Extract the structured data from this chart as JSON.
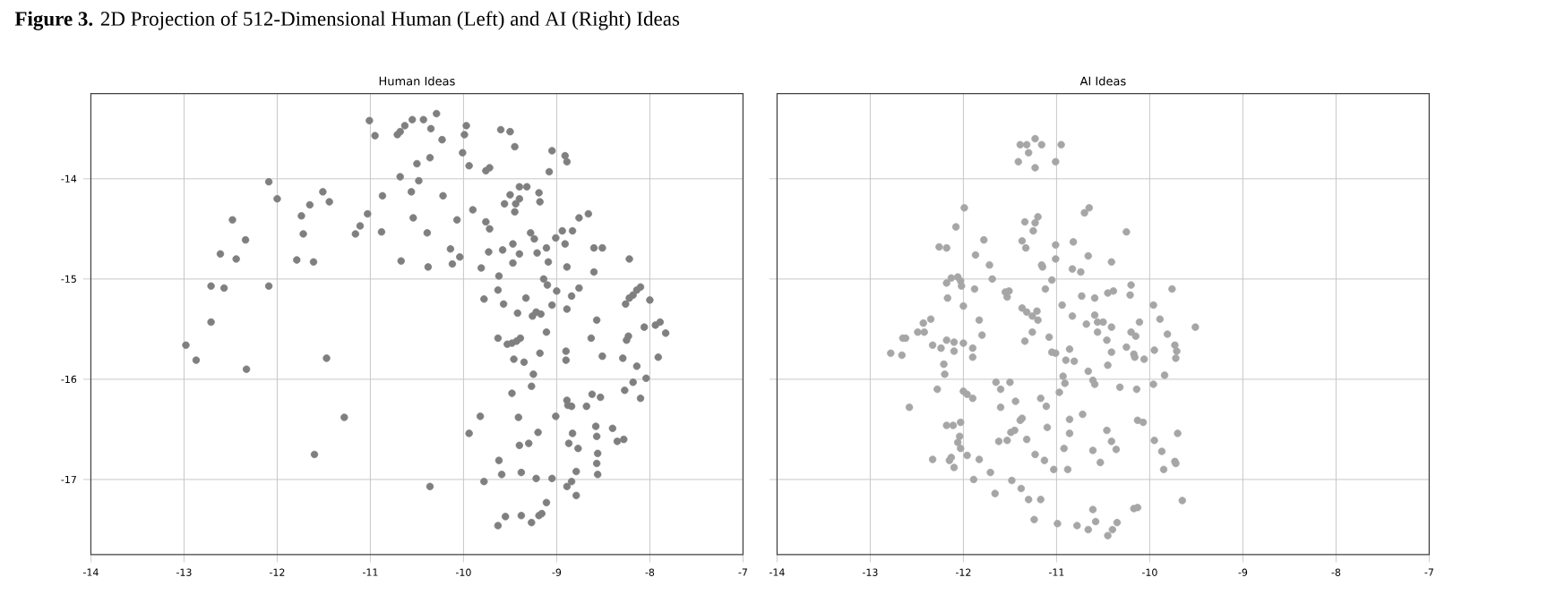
{
  "chart_data": [
    {
      "type": "scatter",
      "title": "Human Ideas",
      "annotations": [
        "**Figure 3.** 2D Projection of 512-Dimensional Human (Left) and AI (Right) Ideas"
      ],
      "color": "#7f7f7f",
      "marker": "circle",
      "grid": true,
      "xlim": [
        -14,
        -7
      ],
      "ylim": [
        -17.75,
        -13.15
      ],
      "xticks": [
        -14,
        -13,
        -12,
        -11,
        -10,
        -9,
        -8,
        -7
      ],
      "yticks": [
        -14,
        -15,
        -16,
        -17
      ],
      "x": [
        -12.09,
        -12.0,
        -12.48,
        -12.61,
        -12.34,
        -12.44,
        -12.71,
        -12.57,
        -12.09,
        -12.71,
        -12.98,
        -12.87,
        -12.33,
        -11.74,
        -11.72,
        -11.65,
        -11.51,
        -11.44,
        -11.79,
        -11.61,
        -11.47,
        -11.28,
        -11.6,
        -11.16,
        -11.01,
        -10.95,
        -10.71,
        -10.68,
        -10.63,
        -10.55,
        -10.43,
        -10.35,
        -10.29,
        -10.23,
        -9.97,
        -9.99,
        -10.01,
        -9.94,
        -10.5,
        -10.36,
        -10.68,
        -10.48,
        -10.87,
        -10.56,
        -11.03,
        -11.11,
        -10.88,
        -10.54,
        -10.39,
        -10.22,
        -10.07,
        -10.67,
        -10.38,
        -10.14,
        -10.12,
        -10.04,
        -9.9,
        -9.76,
        -9.72,
        -9.6,
        -9.5,
        -9.45,
        -9.76,
        -9.72,
        -9.56,
        -9.5,
        -9.44,
        -9.4,
        -9.45,
        -9.4,
        -9.32,
        -9.19,
        -9.18,
        -9.05,
        -9.08,
        -8.91,
        -8.89,
        -9.73,
        -9.58,
        -9.47,
        -9.28,
        -9.24,
        -9.11,
        -9.01,
        -8.94,
        -8.83,
        -8.91,
        -8.76,
        -8.66,
        -8.6,
        -8.51,
        -9.47,
        -9.4,
        -9.21,
        -9.09,
        -9.81,
        -9.62,
        -8.89,
        -8.6,
        -8.22,
        -9.14,
        -9.1,
        -9.0,
        -8.76,
        -8.84,
        -8.89,
        -9.05,
        -9.63,
        -9.78,
        -9.57,
        -9.33,
        -9.42,
        -9.26,
        -9.22,
        -9.17,
        -9.11,
        -9.63,
        -9.53,
        -9.48,
        -9.43,
        -9.39,
        -9.46,
        -9.35,
        -9.18,
        -9.25,
        -9.27,
        -8.9,
        -8.9,
        -8.63,
        -8.57,
        -8.51,
        -8.26,
        -8.22,
        -8.18,
        -8.14,
        -8.1,
        -8.0,
        -8.06,
        -7.94,
        -7.89,
        -7.83,
        -8.25,
        -8.23,
        -8.29,
        -8.14,
        -7.91,
        -8.04,
        -8.18,
        -8.27,
        -8.1,
        -9.48,
        -8.62,
        -8.53,
        -8.68,
        -8.89,
        -8.88,
        -8.84,
        -9.01,
        -9.82,
        -9.41,
        -9.94,
        -9.2,
        -9.3,
        -9.4,
        -8.83,
        -8.87,
        -8.77,
        -8.58,
        -8.57,
        -8.4,
        -8.35,
        -8.28,
        -8.56,
        -8.57,
        -8.56,
        -9.62,
        -9.59,
        -9.78,
        -9.38,
        -9.22,
        -9.05,
        -8.79,
        -8.89,
        -8.84,
        -8.79,
        -9.11,
        -10.36,
        -9.63,
        -9.55,
        -9.38,
        -9.27,
        -9.19,
        -9.16
      ],
      "values": [
        -14.03,
        -14.2,
        -14.41,
        -14.75,
        -14.61,
        -14.8,
        -15.07,
        -15.09,
        -15.07,
        -15.43,
        -15.66,
        -15.81,
        -15.9,
        -14.37,
        -14.55,
        -14.26,
        -14.13,
        -14.23,
        -14.81,
        -14.83,
        -15.79,
        -16.38,
        -16.75,
        -14.55,
        -13.42,
        -13.57,
        -13.56,
        -13.53,
        -13.47,
        -13.41,
        -13.41,
        -13.5,
        -13.35,
        -13.61,
        -13.47,
        -13.56,
        -13.74,
        -13.87,
        -13.85,
        -13.79,
        -13.98,
        -14.02,
        -14.17,
        -14.13,
        -14.35,
        -14.47,
        -14.53,
        -14.39,
        -14.54,
        -14.17,
        -14.41,
        -14.82,
        -14.88,
        -14.7,
        -14.85,
        -14.78,
        -14.31,
        -13.92,
        -13.89,
        -13.51,
        -13.53,
        -13.68,
        -14.43,
        -14.5,
        -14.25,
        -14.16,
        -14.25,
        -14.2,
        -14.33,
        -14.08,
        -14.08,
        -14.14,
        -14.23,
        -13.72,
        -13.93,
        -13.77,
        -13.83,
        -14.73,
        -14.71,
        -14.65,
        -14.54,
        -14.6,
        -14.69,
        -14.59,
        -14.52,
        -14.52,
        -14.65,
        -14.39,
        -14.35,
        -14.69,
        -14.69,
        -14.84,
        -14.75,
        -14.74,
        -14.83,
        -14.89,
        -14.97,
        -14.88,
        -14.93,
        -14.8,
        -15.0,
        -15.06,
        -15.12,
        -15.09,
        -15.17,
        -15.3,
        -15.26,
        -15.11,
        -15.2,
        -15.25,
        -15.19,
        -15.34,
        -15.37,
        -15.33,
        -15.35,
        -15.53,
        -15.59,
        -15.65,
        -15.64,
        -15.62,
        -15.59,
        -15.8,
        -15.83,
        -15.74,
        -15.95,
        -16.07,
        -15.72,
        -15.81,
        -15.59,
        -15.41,
        -15.77,
        -15.25,
        -15.19,
        -15.16,
        -15.11,
        -15.08,
        -15.21,
        -15.48,
        -15.46,
        -15.43,
        -15.54,
        -15.61,
        -15.57,
        -15.79,
        -15.87,
        -15.78,
        -15.99,
        -16.03,
        -16.11,
        -16.19,
        -16.14,
        -16.15,
        -16.18,
        -16.27,
        -16.21,
        -16.26,
        -16.27,
        -16.37,
        -16.37,
        -16.38,
        -16.54,
        -16.53,
        -16.64,
        -16.66,
        -16.54,
        -16.64,
        -16.69,
        -16.47,
        -16.57,
        -16.49,
        -16.62,
        -16.6,
        -16.74,
        -16.84,
        -16.95,
        -16.81,
        -16.95,
        -17.02,
        -16.93,
        -16.99,
        -16.99,
        -16.92,
        -17.07,
        -17.02,
        -17.16,
        -17.23,
        -17.07,
        -17.46,
        -17.37,
        -17.36,
        -17.43,
        -17.36,
        -17.34
      ]
    },
    {
      "type": "scatter",
      "title": "AI Ideas",
      "tick_labels": "x",
      "color": "#a6a6a6",
      "marker": "circle",
      "grid": true,
      "xlim": [
        -14,
        -7
      ],
      "ylim": [
        -17.75,
        -13.15
      ],
      "xticks": [
        -14,
        -13,
        -12,
        -11,
        -10,
        -9,
        -8,
        -7
      ],
      "yticks": [
        -14,
        -15,
        -16,
        -17
      ],
      "x": [
        -11.99,
        -12.08,
        -12.26,
        -12.18,
        -11.87,
        -11.78,
        -11.72,
        -11.69,
        -12.13,
        -12.06,
        -12.18,
        -12.03,
        -12.02,
        -11.88,
        -12.17,
        -12.0,
        -11.83,
        -11.8,
        -12.35,
        -12.43,
        -12.49,
        -12.42,
        -12.65,
        -12.62,
        -12.78,
        -12.66,
        -12.33,
        -12.24,
        -12.18,
        -12.1,
        -12.1,
        -12.0,
        -11.9,
        -11.9,
        -12.21,
        -12.2,
        -12.28,
        -12.58,
        -12.0,
        -11.96,
        -11.9,
        -11.65,
        -11.6,
        -11.6,
        -12.18,
        -12.11,
        -12.03,
        -12.04,
        -12.06,
        -12.03,
        -11.96,
        -12.33,
        -12.15,
        -12.1,
        -12.13,
        -11.83,
        -11.89,
        -11.71,
        -11.66,
        -11.62,
        -11.39,
        -11.32,
        -11.23,
        -11.16,
        -11.3,
        -11.41,
        -11.23,
        -10.95,
        -11.01,
        -11.34,
        -11.25,
        -11.23,
        -11.2,
        -11.37,
        -11.33,
        -10.7,
        -10.65,
        -10.25,
        -11.01,
        -11.01,
        -11.16,
        -11.15,
        -10.82,
        -10.66,
        -10.41,
        -10.83,
        -10.74,
        -11.05,
        -11.12,
        -11.55,
        -11.51,
        -11.53,
        -11.37,
        -11.32,
        -11.21,
        -11.2,
        -11.26,
        -11.26,
        -11.34,
        -11.08,
        -11.05,
        -11.01,
        -10.94,
        -10.83,
        -10.73,
        -10.59,
        -10.45,
        -10.39,
        -10.2,
        -10.21,
        -9.96,
        -9.76,
        -9.89,
        -9.51,
        -10.11,
        -10.59,
        -10.56,
        -10.5,
        -10.68,
        -10.56,
        -10.41,
        -10.2,
        -10.15,
        -10.46,
        -10.41,
        -10.25,
        -10.17,
        -10.16,
        -10.06,
        -9.95,
        -9.81,
        -9.73,
        -9.71,
        -9.72,
        -10.86,
        -10.9,
        -10.81,
        -10.66,
        -10.45,
        -10.93,
        -10.91,
        -10.97,
        -10.61,
        -10.59,
        -10.32,
        -10.14,
        -9.96,
        -9.84,
        -11.5,
        -11.44,
        -11.17,
        -11.11,
        -11.37,
        -11.39,
        -11.49,
        -11.45,
        -11.53,
        -11.32,
        -11.1,
        -10.86,
        -10.72,
        -10.86,
        -10.92,
        -11.23,
        -11.13,
        -11.03,
        -10.88,
        -10.61,
        -10.53,
        -10.46,
        -10.41,
        -10.36,
        -10.13,
        -10.07,
        -9.95,
        -9.87,
        -9.7,
        -9.73,
        -9.72,
        -9.85,
        -11.48,
        -11.38,
        -11.3,
        -11.17,
        -11.24,
        -9.65,
        -10.17,
        -10.13,
        -10.61,
        -10.99,
        -10.78,
        -10.66,
        -10.58,
        -10.45,
        -10.4,
        -10.35
      ],
      "values": [
        -14.29,
        -14.48,
        -14.68,
        -14.69,
        -14.76,
        -14.61,
        -14.86,
        -15.0,
        -14.99,
        -14.98,
        -15.04,
        -15.02,
        -15.07,
        -15.1,
        -15.19,
        -15.27,
        -15.41,
        -15.56,
        -15.4,
        -15.44,
        -15.53,
        -15.53,
        -15.59,
        -15.59,
        -15.74,
        -15.76,
        -15.66,
        -15.69,
        -15.61,
        -15.63,
        -15.72,
        -15.64,
        -15.69,
        -15.78,
        -15.85,
        -15.95,
        -16.1,
        -16.28,
        -16.12,
        -16.15,
        -16.19,
        -16.03,
        -16.1,
        -16.28,
        -16.46,
        -16.46,
        -16.43,
        -16.57,
        -16.63,
        -16.69,
        -16.76,
        -16.8,
        -16.81,
        -16.88,
        -16.78,
        -16.8,
        -17.0,
        -16.93,
        -17.14,
        -16.62,
        -13.66,
        -13.66,
        -13.6,
        -13.66,
        -13.74,
        -13.83,
        -13.89,
        -13.66,
        -13.83,
        -14.43,
        -14.52,
        -14.44,
        -14.38,
        -14.62,
        -14.69,
        -14.34,
        -14.29,
        -14.53,
        -14.66,
        -14.8,
        -14.86,
        -14.88,
        -14.63,
        -14.77,
        -14.83,
        -14.9,
        -14.93,
        -15.01,
        -15.1,
        -15.13,
        -15.12,
        -15.18,
        -15.29,
        -15.33,
        -15.32,
        -15.41,
        -15.37,
        -15.53,
        -15.62,
        -15.58,
        -15.73,
        -15.74,
        -15.26,
        -15.37,
        -15.17,
        -15.19,
        -15.14,
        -15.12,
        -15.06,
        -15.16,
        -15.26,
        -15.1,
        -15.4,
        -15.48,
        -15.43,
        -15.36,
        -15.43,
        -15.43,
        -15.45,
        -15.53,
        -15.48,
        -15.53,
        -15.57,
        -15.61,
        -15.73,
        -15.68,
        -15.75,
        -15.78,
        -15.8,
        -15.71,
        -15.55,
        -15.66,
        -15.72,
        -15.79,
        -15.7,
        -15.81,
        -15.82,
        -15.92,
        -15.86,
        -15.97,
        -16.04,
        -16.13,
        -16.01,
        -16.05,
        -16.08,
        -16.1,
        -16.05,
        -15.96,
        -16.03,
        -16.22,
        -16.19,
        -16.27,
        -16.39,
        -16.41,
        -16.53,
        -16.51,
        -16.61,
        -16.6,
        -16.48,
        -16.4,
        -16.35,
        -16.54,
        -16.69,
        -16.75,
        -16.81,
        -16.9,
        -16.9,
        -16.71,
        -16.83,
        -16.51,
        -16.62,
        -16.7,
        -16.41,
        -16.43,
        -16.61,
        -16.72,
        -16.54,
        -16.82,
        -16.84,
        -16.9,
        -17.01,
        -17.09,
        -17.2,
        -17.2,
        -17.4,
        -17.21,
        -17.29,
        -17.28,
        -17.3,
        -17.44,
        -17.46,
        -17.5,
        -17.42,
        -17.56,
        -17.5,
        -17.43
      ]
    }
  ]
}
